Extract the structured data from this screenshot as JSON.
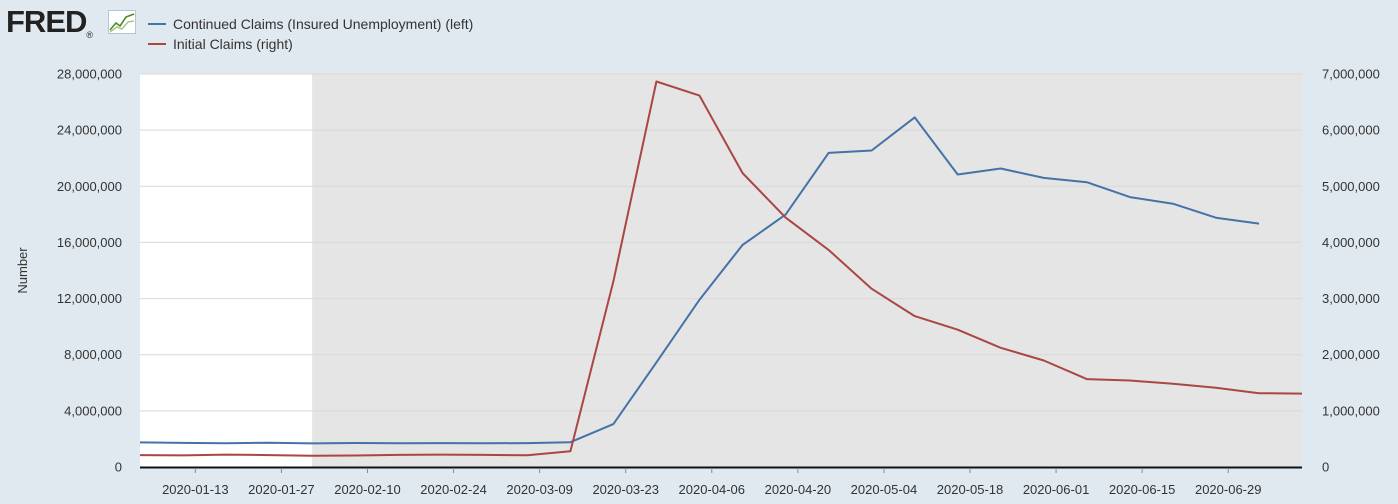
{
  "brand": {
    "name": "FRED",
    "registered": "®"
  },
  "legend": [
    {
      "label": "Continued Claims (Insured Unemployment) (left)",
      "color": "#4572a7"
    },
    {
      "label": "Initial Claims (right)",
      "color": "#aa4643"
    }
  ],
  "chart_data": {
    "type": "line",
    "title": "",
    "ylabel": "Number",
    "y_left_lim": [
      0,
      28000000
    ],
    "y_right_lim": [
      0,
      7000000
    ],
    "y_left_ticks": [
      "0",
      "4,000,000",
      "8,000,000",
      "12,000,000",
      "16,000,000",
      "20,000,000",
      "24,000,000",
      "28,000,000"
    ],
    "y_right_ticks": [
      "0",
      "1,000,000",
      "2,000,000",
      "3,000,000",
      "4,000,000",
      "5,000,000",
      "6,000,000",
      "7,000,000"
    ],
    "x_tick_labels": [
      "2020-01-13",
      "2020-01-27",
      "2020-02-10",
      "2020-02-24",
      "2020-03-09",
      "2020-03-23",
      "2020-04-06",
      "2020-04-20",
      "2020-05-04",
      "2020-05-18",
      "2020-06-01",
      "2020-06-15",
      "2020-06-29"
    ],
    "x_range": [
      "2020-01-04",
      "2020-07-11"
    ],
    "recession_shading": {
      "start": "2020-02-01",
      "end": "2020-07-11"
    },
    "grid": "horizontal",
    "legend_position": "top-left",
    "colors": {
      "plot_bg": "#ffffff",
      "recession": "#e5e5e5",
      "grid": "#d8d8d8"
    },
    "series": [
      {
        "name": "Continued Claims (Insured Unemployment) (left)",
        "axis": "left",
        "color": "#4572a7",
        "x": [
          "2020-01-04",
          "2020-01-11",
          "2020-01-18",
          "2020-01-25",
          "2020-02-01",
          "2020-02-08",
          "2020-02-15",
          "2020-02-22",
          "2020-02-29",
          "2020-03-07",
          "2020-03-14",
          "2020-03-21",
          "2020-03-28",
          "2020-04-04",
          "2020-04-11",
          "2020-04-18",
          "2020-04-25",
          "2020-05-02",
          "2020-05-09",
          "2020-05-16",
          "2020-05-23",
          "2020-05-30",
          "2020-06-06",
          "2020-06-13",
          "2020-06-20",
          "2020-06-27",
          "2020-07-04"
        ],
        "values": [
          1750000,
          1720000,
          1690000,
          1730000,
          1680000,
          1710000,
          1690000,
          1700000,
          1690000,
          1700000,
          1770000,
          3060000,
          7450000,
          11920000,
          15820000,
          17980000,
          22380000,
          22550000,
          24910000,
          20840000,
          21270000,
          20600000,
          20290000,
          19230000,
          18760000,
          17760000,
          17340000
        ]
      },
      {
        "name": "Initial Claims (right)",
        "axis": "right",
        "color": "#aa4643",
        "x": [
          "2020-01-04",
          "2020-01-11",
          "2020-01-18",
          "2020-01-25",
          "2020-02-01",
          "2020-02-08",
          "2020-02-15",
          "2020-02-22",
          "2020-02-29",
          "2020-03-07",
          "2020-03-14",
          "2020-03-21",
          "2020-03-28",
          "2020-04-04",
          "2020-04-11",
          "2020-04-18",
          "2020-04-25",
          "2020-05-02",
          "2020-05-09",
          "2020-05-16",
          "2020-05-23",
          "2020-05-30",
          "2020-06-06",
          "2020-06-13",
          "2020-06-20",
          "2020-06-27",
          "2020-07-04",
          "2020-07-11"
        ],
        "values": [
          212000,
          207000,
          220000,
          212000,
          202000,
          205000,
          215000,
          220000,
          216000,
          211000,
          282000,
          3307000,
          6867000,
          6615000,
          5237000,
          4442000,
          3867000,
          3176000,
          2687000,
          2446000,
          2123000,
          1897000,
          1566000,
          1540000,
          1482000,
          1413000,
          1314000,
          1307000
        ]
      }
    ]
  }
}
